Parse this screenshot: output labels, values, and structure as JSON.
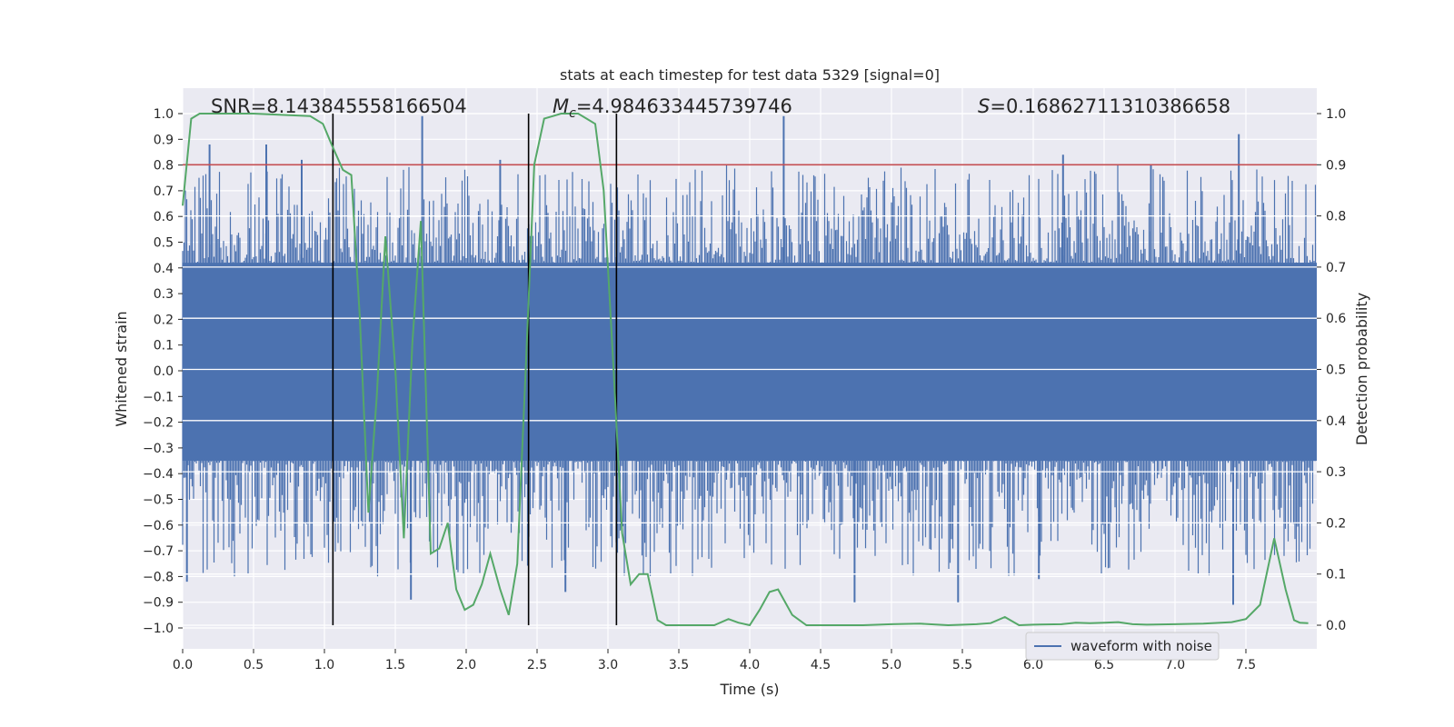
{
  "chart_data": {
    "type": "line",
    "title": "stats at each timestep for test data 5329 [signal=0]",
    "xlabel": "Time (s)",
    "ylabel": "Whitened strain",
    "y2label": "Detection probability",
    "xlim": [
      0.0,
      8.0
    ],
    "ylim": [
      -1.0,
      1.0
    ],
    "y2lim": [
      -0.0455,
      1.0455
    ],
    "xticks": [
      0.0,
      0.5,
      1.0,
      1.5,
      2.0,
      2.5,
      3.0,
      3.5,
      4.0,
      4.5,
      5.0,
      5.5,
      6.0,
      6.5,
      7.0,
      7.5
    ],
    "xtick_labels": [
      "0.0",
      "0.5",
      "1.0",
      "1.5",
      "2.0",
      "2.5",
      "3.0",
      "3.5",
      "4.0",
      "4.5",
      "5.0",
      "5.5",
      "6.0",
      "6.5",
      "7.0",
      "7.5"
    ],
    "yticks": [
      -1.0,
      -0.9,
      -0.8,
      -0.7,
      -0.6,
      -0.5,
      -0.4,
      -0.3,
      -0.2,
      -0.1,
      0.0,
      0.1,
      0.2,
      0.3,
      0.4,
      0.5,
      0.6,
      0.7,
      0.8,
      0.9,
      1.0
    ],
    "ytick_labels": [
      "−1.0",
      "−0.9",
      "−0.8",
      "−0.7",
      "−0.6",
      "−0.5",
      "−0.4",
      "−0.3",
      "−0.2",
      "−0.1",
      "0.0",
      "0.1",
      "0.2",
      "0.3",
      "0.4",
      "0.5",
      "0.6",
      "0.7",
      "0.8",
      "0.9",
      "1.0"
    ],
    "y2ticks": [
      0.0,
      0.1,
      0.2,
      0.3,
      0.4,
      0.5,
      0.6,
      0.7,
      0.8,
      0.9,
      1.0
    ],
    "y2tick_labels": [
      "0.0",
      "0.1",
      "0.2",
      "0.3",
      "0.4",
      "0.5",
      "0.6",
      "0.7",
      "0.8",
      "0.9",
      "1.0"
    ],
    "grid": true,
    "legend": {
      "placement": "lower-right",
      "entries": [
        "waveform with noise"
      ]
    },
    "annotations": {
      "snr": "SNR=8.143845558166504",
      "mc_symbol": "M",
      "mc_sub": "c",
      "mc_value": "=4.984633445739746",
      "s_symbol": "S",
      "s_value": "=0.16862711310386658"
    },
    "threshold": {
      "y2": 0.9,
      "color": "#c44e52"
    },
    "vertical_lines_x": [
      1.06,
      2.44,
      3.06
    ],
    "waveform": {
      "name": "waveform with noise",
      "color": "#4c72b0",
      "core_envelope": [
        -0.35,
        0.42
      ],
      "peak_positive": [
        [
          0.19,
          0.88
        ],
        [
          0.59,
          0.88
        ],
        [
          1.69,
          0.99
        ],
        [
          2.24,
          0.82
        ],
        [
          4.24,
          0.99
        ],
        [
          7.45,
          0.92
        ],
        [
          0.84,
          0.82
        ],
        [
          6.21,
          0.84
        ],
        [
          6.83,
          0.8
        ]
      ],
      "peak_negative": [
        [
          0.03,
          -0.82
        ],
        [
          1.61,
          -0.89
        ],
        [
          2.7,
          -0.86
        ],
        [
          4.74,
          -0.9
        ],
        [
          5.47,
          -0.9
        ],
        [
          6.04,
          -0.81
        ],
        [
          7.41,
          -0.91
        ]
      ]
    },
    "probability_series": {
      "color": "#55a868",
      "x": [
        0.0,
        0.06,
        0.12,
        0.5,
        0.9,
        0.99,
        1.05,
        1.13,
        1.19,
        1.25,
        1.31,
        1.37,
        1.43,
        1.5,
        1.56,
        1.62,
        1.68,
        1.75,
        1.81,
        1.87,
        1.93,
        1.99,
        2.05,
        2.11,
        2.17,
        2.24,
        2.3,
        2.36,
        2.42,
        2.48,
        2.55,
        2.61,
        2.67,
        2.73,
        2.79,
        2.85,
        2.91,
        2.97,
        3.04,
        3.1,
        3.16,
        3.22,
        3.28,
        3.35,
        3.41,
        3.47,
        3.53,
        3.6,
        3.75,
        3.85,
        3.92,
        4.0,
        4.07,
        4.14,
        4.2,
        4.3,
        4.4,
        4.6,
        4.8,
        5.0,
        5.2,
        5.4,
        5.6,
        5.7,
        5.8,
        5.9,
        6.0,
        6.2,
        6.3,
        6.4,
        6.5,
        6.6,
        6.7,
        6.8,
        7.0,
        7.2,
        7.4,
        7.5,
        7.6,
        7.7,
        7.78,
        7.84,
        7.88,
        7.94
      ],
      "y": [
        0.82,
        0.99,
        1.0,
        1.0,
        0.995,
        0.98,
        0.94,
        0.89,
        0.88,
        0.6,
        0.22,
        0.45,
        0.76,
        0.5,
        0.17,
        0.55,
        0.79,
        0.14,
        0.15,
        0.2,
        0.07,
        0.03,
        0.04,
        0.08,
        0.14,
        0.07,
        0.02,
        0.12,
        0.5,
        0.9,
        0.99,
        0.995,
        1.0,
        1.0,
        1.0,
        0.99,
        0.98,
        0.85,
        0.5,
        0.18,
        0.08,
        0.1,
        0.1,
        0.01,
        0.0,
        0.0,
        0.0,
        0.0,
        0.0,
        0.012,
        0.005,
        0.0,
        0.03,
        0.065,
        0.07,
        0.02,
        0.0,
        0.0,
        0.0,
        0.002,
        0.003,
        0.0,
        0.002,
        0.004,
        0.016,
        0.0,
        0.001,
        0.002,
        0.005,
        0.004,
        0.005,
        0.006,
        0.002,
        0.001,
        0.002,
        0.003,
        0.006,
        0.012,
        0.04,
        0.17,
        0.07,
        0.01,
        0.005,
        0.004
      ]
    }
  }
}
